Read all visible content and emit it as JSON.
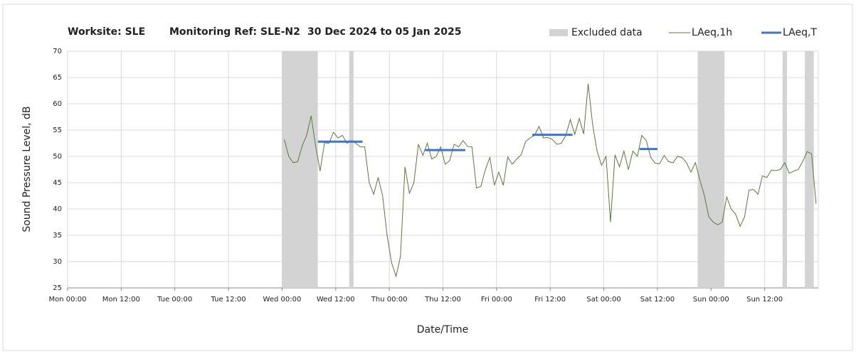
{
  "chart_data": {
    "type": "line",
    "title_parts": [
      "Worksite: SLE",
      "Monitoring Ref: SLE-N2",
      "30 Dec 2024 to 05 Jan 2025"
    ],
    "xlabel": "Date/Time",
    "ylabel": "Sound Pressure Level, dB",
    "xlim": [
      0,
      168
    ],
    "ylim": [
      25,
      70
    ],
    "xticks": [
      {
        "value": 0,
        "label": "Mon 00:00"
      },
      {
        "value": 12,
        "label": "Mon 12:00"
      },
      {
        "value": 24,
        "label": "Tue 00:00"
      },
      {
        "value": 36,
        "label": "Tue 12:00"
      },
      {
        "value": 48,
        "label": "Wed 00:00"
      },
      {
        "value": 60,
        "label": "Wed 12:00"
      },
      {
        "value": 72,
        "label": "Thu 00:00"
      },
      {
        "value": 84,
        "label": "Thu 12:00"
      },
      {
        "value": 96,
        "label": "Fri 00:00"
      },
      {
        "value": 108,
        "label": "Fri 12:00"
      },
      {
        "value": 120,
        "label": "Sat 00:00"
      },
      {
        "value": 132,
        "label": "Sat 12:00"
      },
      {
        "value": 144,
        "label": "Sun 00:00"
      },
      {
        "value": 156,
        "label": "Sun 12:00"
      }
    ],
    "yticks": [
      25,
      30,
      35,
      40,
      45,
      50,
      55,
      60,
      65,
      70
    ],
    "grid": true,
    "legend": "top-right",
    "excluded": {
      "name": "Excluded data",
      "color": "#d3d3d3",
      "ranges": [
        [
          48,
          56
        ],
        [
          63,
          64
        ],
        [
          141,
          147
        ],
        [
          160,
          161
        ],
        [
          165,
          167
        ]
      ]
    },
    "x": [
      48.5,
      49.5,
      50.5,
      51.5,
      52.5,
      53.5,
      54.5,
      55.5,
      56.5,
      57.5,
      58.5,
      59.5,
      60.5,
      61.5,
      62.5,
      63.5,
      64.5,
      65.5,
      66.5,
      67.5,
      68.5,
      69.5,
      70.5,
      71.5,
      72.5,
      73.5,
      74.5,
      75.5,
      76.5,
      77.5,
      78.5,
      79.5,
      80.5,
      81.5,
      82.5,
      83.5,
      84.5,
      85.5,
      86.5,
      87.5,
      88.5,
      89.5,
      90.5,
      91.5,
      92.5,
      93.5,
      94.5,
      95.5,
      96.5,
      97.5,
      98.5,
      99.5,
      100.5,
      101.5,
      102.5,
      103.5,
      104.5,
      105.5,
      106.5,
      107.5,
      108.5,
      109.5,
      110.5,
      111.5,
      112.5,
      113.5,
      114.5,
      115.5,
      116.5,
      117.5,
      118.5,
      119.5,
      120.5,
      121.5,
      122.5,
      123.5,
      124.5,
      125.5,
      126.5,
      127.5,
      128.5,
      129.5,
      130.5,
      131.5,
      132.5,
      133.5,
      134.5,
      135.5,
      136.5,
      137.5,
      138.5,
      139.5,
      140.5,
      141.5,
      142.5,
      143.5,
      144.5,
      145.5,
      146.5,
      147.5,
      148.5,
      149.5,
      150.5,
      151.5,
      152.5,
      153.5,
      154.5,
      155.5,
      156.5,
      157.5,
      158.5,
      159.5,
      160.5,
      161.5,
      162.5,
      163.5,
      164.5,
      165.5,
      166.5,
      167.5
    ],
    "series": [
      {
        "name": "LAeq,1h",
        "color": "#5a7a3a",
        "values": [
          53.2,
          50,
          48.8,
          49,
          52,
          54,
          57.7,
          52,
          47.2,
          52.6,
          52.5,
          54.6,
          53.5,
          54,
          52.5,
          53,
          52.5,
          51.8,
          51.8,
          45,
          42.8,
          46,
          42.5,
          35,
          29.8,
          27.2,
          31,
          48,
          43,
          45,
          52.3,
          50.2,
          52.5,
          49.5,
          50,
          51.8,
          48.5,
          49.2,
          52.3,
          51.8,
          53,
          51.9,
          51.8,
          44,
          44.3,
          47.5,
          49.8,
          44.5,
          47,
          44.5,
          49.9,
          48.5,
          49.5,
          50.3,
          52.8,
          53.5,
          54,
          55.7,
          53.5,
          53.6,
          53.2,
          52.3,
          52.5,
          54,
          57,
          54.2,
          57.2,
          54.3,
          63.8,
          56,
          51,
          48.3,
          50,
          37.5,
          50.3,
          48,
          51,
          47.5,
          51,
          50,
          54,
          53,
          49.8,
          48.7,
          48.6,
          50.2,
          49,
          48.8,
          50,
          49.8,
          48.8,
          47,
          48.8,
          45.5,
          42.6,
          38.5,
          37.5,
          37,
          37.5,
          42.3,
          40,
          39,
          36.7,
          38.5,
          43.6,
          43.7,
          42.8,
          46.3,
          46,
          47.4,
          47.3,
          47.5,
          48.8,
          46.8,
          47.2,
          47.5,
          49,
          50.9,
          50.5,
          41
        ]
      }
    ],
    "periods": {
      "name": "LAeq,T",
      "color": "#4472c4",
      "segments": [
        {
          "start": 56,
          "end": 66,
          "value": 52.8
        },
        {
          "start": 80,
          "end": 89,
          "value": 51.2
        },
        {
          "start": 104,
          "end": 113,
          "value": 54.1
        },
        {
          "start": 128,
          "end": 132,
          "value": 51.4
        }
      ]
    }
  }
}
